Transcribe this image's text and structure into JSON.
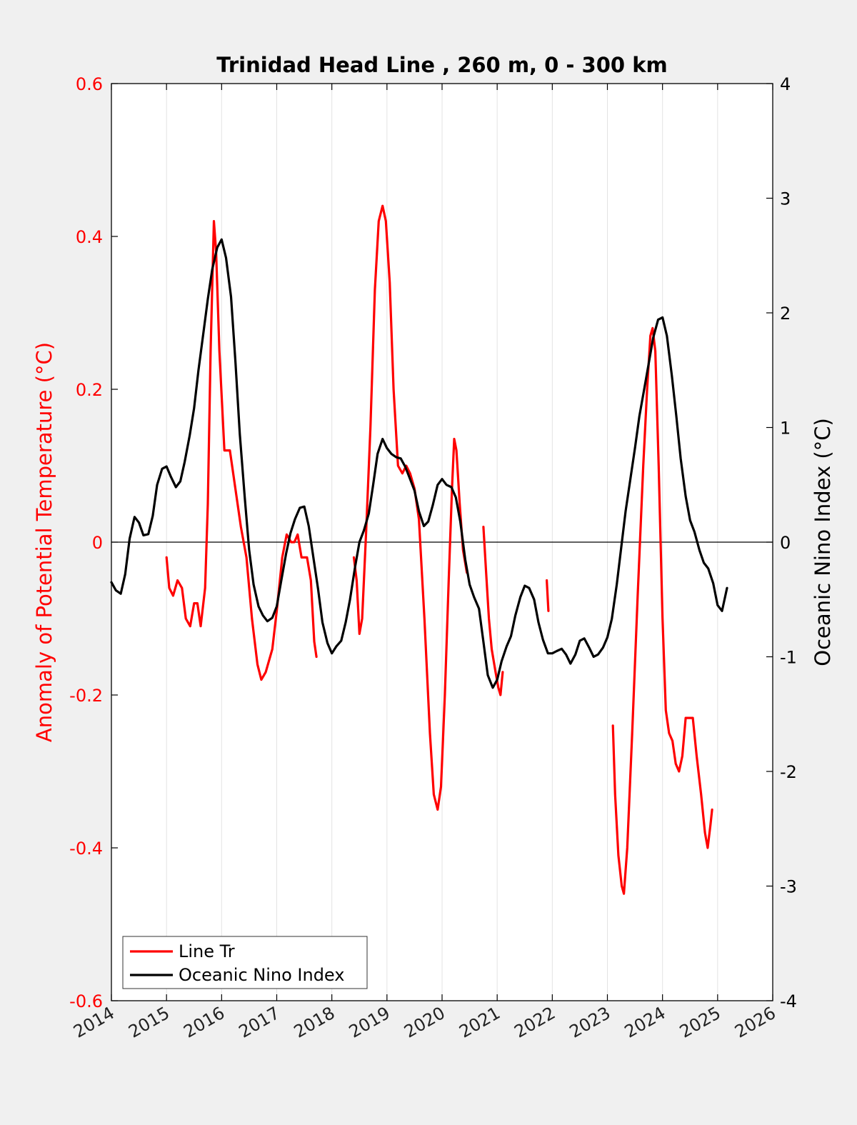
{
  "chart_data": {
    "type": "line",
    "title": "Trinidad Head Line , 260 m, 0 - 300 km",
    "xlim": [
      2014,
      2026
    ],
    "x_ticks": [
      2014,
      2015,
      2016,
      2017,
      2018,
      2019,
      2020,
      2021,
      2022,
      2023,
      2024,
      2025,
      2026
    ],
    "x_tick_labels": [
      "2014",
      "2015",
      "2016",
      "2017",
      "2018",
      "2019",
      "2020",
      "2021",
      "2022",
      "2023",
      "2024",
      "2025",
      "2026"
    ],
    "grid": "vertical",
    "legend_position": "bottom-left",
    "y_left": {
      "label": "Anomaly of Potential Temperature (°C)",
      "lim": [
        -0.6,
        0.6
      ],
      "ticks": [
        -0.6,
        -0.4,
        -0.2,
        0,
        0.2,
        0.4,
        0.6
      ],
      "tick_labels": [
        "-0.6",
        "-0.4",
        "-0.2",
        "0",
        "0.2",
        "0.4",
        "0.6"
      ],
      "color": "#ff0000"
    },
    "y_right": {
      "label": "Oceanic Nino Index (°C)",
      "lim": [
        -4,
        4
      ],
      "ticks": [
        -4,
        -3,
        -2,
        -1,
        0,
        1,
        2,
        3,
        4
      ],
      "tick_labels": [
        "-4",
        "-3",
        "-2",
        "-1",
        "0",
        "1",
        "2",
        "3",
        "4"
      ],
      "color": "#000000"
    },
    "series": [
      {
        "name": "Line Tr",
        "axis": "left",
        "color": "#ff0000",
        "segments": [
          [
            [
              2015.0,
              -0.02
            ],
            [
              2015.05,
              -0.06
            ],
            [
              2015.12,
              -0.07
            ],
            [
              2015.2,
              -0.05
            ],
            [
              2015.28,
              -0.06
            ],
            [
              2015.35,
              -0.1
            ],
            [
              2015.43,
              -0.11
            ],
            [
              2015.5,
              -0.08
            ],
            [
              2015.56,
              -0.08
            ],
            [
              2015.62,
              -0.11
            ],
            [
              2015.7,
              -0.06
            ],
            [
              2015.75,
              0.05
            ],
            [
              2015.8,
              0.25
            ],
            [
              2015.86,
              0.42
            ],
            [
              2015.9,
              0.38
            ],
            [
              2015.96,
              0.25
            ],
            [
              2016.05,
              0.12
            ],
            [
              2016.15,
              0.12
            ],
            [
              2016.25,
              0.07
            ],
            [
              2016.35,
              0.02
            ],
            [
              2016.45,
              -0.02
            ],
            [
              2016.55,
              -0.1
            ],
            [
              2016.65,
              -0.16
            ],
            [
              2016.72,
              -0.18
            ],
            [
              2016.8,
              -0.17
            ],
            [
              2016.92,
              -0.14
            ],
            [
              2017.0,
              -0.09
            ],
            [
              2017.1,
              -0.02
            ],
            [
              2017.18,
              0.01
            ],
            [
              2017.26,
              0.0
            ],
            [
              2017.32,
              0.0
            ],
            [
              2017.38,
              0.01
            ],
            [
              2017.45,
              -0.02
            ],
            [
              2017.55,
              -0.02
            ],
            [
              2017.62,
              -0.05
            ],
            [
              2017.68,
              -0.13
            ],
            [
              2017.72,
              -0.15
            ]
          ],
          [
            [
              2018.4,
              -0.02
            ],
            [
              2018.45,
              -0.05
            ],
            [
              2018.5,
              -0.12
            ],
            [
              2018.55,
              -0.1
            ],
            [
              2018.62,
              0.01
            ],
            [
              2018.7,
              0.15
            ],
            [
              2018.78,
              0.33
            ],
            [
              2018.85,
              0.42
            ],
            [
              2018.92,
              0.44
            ],
            [
              2018.98,
              0.42
            ],
            [
              2019.05,
              0.34
            ],
            [
              2019.12,
              0.2
            ],
            [
              2019.2,
              0.1
            ],
            [
              2019.28,
              0.09
            ],
            [
              2019.35,
              0.1
            ],
            [
              2019.42,
              0.09
            ],
            [
              2019.5,
              0.07
            ],
            [
              2019.58,
              0.03
            ],
            [
              2019.68,
              -0.1
            ],
            [
              2019.78,
              -0.25
            ],
            [
              2019.85,
              -0.33
            ],
            [
              2019.92,
              -0.35
            ],
            [
              2019.98,
              -0.32
            ],
            [
              2020.05,
              -0.2
            ],
            [
              2020.12,
              -0.05
            ],
            [
              2020.18,
              0.07
            ],
            [
              2020.22,
              0.135
            ],
            [
              2020.26,
              0.12
            ],
            [
              2020.32,
              0.05
            ],
            [
              2020.38,
              -0.01
            ],
            [
              2020.45,
              -0.04
            ]
          ],
          [
            [
              2020.75,
              0.02
            ],
            [
              2020.8,
              -0.04
            ],
            [
              2020.85,
              -0.1
            ],
            [
              2020.9,
              -0.14
            ],
            [
              2020.97,
              -0.17
            ],
            [
              2021.02,
              -0.19
            ],
            [
              2021.06,
              -0.2
            ],
            [
              2021.1,
              -0.17
            ]
          ],
          [
            [
              2021.9,
              -0.05
            ],
            [
              2021.93,
              -0.09
            ]
          ],
          [
            [
              2023.1,
              -0.24
            ],
            [
              2023.14,
              -0.33
            ],
            [
              2023.2,
              -0.41
            ],
            [
              2023.26,
              -0.45
            ],
            [
              2023.3,
              -0.46
            ],
            [
              2023.36,
              -0.4
            ],
            [
              2023.45,
              -0.25
            ],
            [
              2023.55,
              -0.07
            ],
            [
              2023.65,
              0.1
            ],
            [
              2023.72,
              0.2
            ],
            [
              2023.78,
              0.27
            ],
            [
              2023.82,
              0.28
            ],
            [
              2023.87,
              0.25
            ],
            [
              2023.93,
              0.1
            ],
            [
              2024.0,
              -0.1
            ],
            [
              2024.06,
              -0.22
            ],
            [
              2024.12,
              -0.25
            ],
            [
              2024.18,
              -0.26
            ],
            [
              2024.24,
              -0.29
            ],
            [
              2024.3,
              -0.3
            ],
            [
              2024.36,
              -0.28
            ],
            [
              2024.42,
              -0.23
            ],
            [
              2024.48,
              -0.23
            ],
            [
              2024.55,
              -0.23
            ],
            [
              2024.62,
              -0.28
            ],
            [
              2024.7,
              -0.33
            ],
            [
              2024.77,
              -0.38
            ],
            [
              2024.82,
              -0.4
            ],
            [
              2024.87,
              -0.37
            ],
            [
              2024.9,
              -0.35
            ]
          ]
        ]
      },
      {
        "name": "Oceanic Nino Index",
        "axis": "right",
        "color": "#000000",
        "segments": [
          [
            [
              2014.0,
              -0.35
            ],
            [
              2014.08,
              -0.42
            ],
            [
              2014.17,
              -0.45
            ],
            [
              2014.25,
              -0.28
            ],
            [
              2014.33,
              0.03
            ],
            [
              2014.42,
              0.22
            ],
            [
              2014.5,
              0.17
            ],
            [
              2014.58,
              0.06
            ],
            [
              2014.67,
              0.07
            ],
            [
              2014.75,
              0.23
            ],
            [
              2014.83,
              0.5
            ],
            [
              2014.92,
              0.64
            ],
            [
              2015.0,
              0.66
            ],
            [
              2015.08,
              0.57
            ],
            [
              2015.17,
              0.48
            ],
            [
              2015.25,
              0.53
            ],
            [
              2015.33,
              0.7
            ],
            [
              2015.42,
              0.93
            ],
            [
              2015.5,
              1.17
            ],
            [
              2015.58,
              1.5
            ],
            [
              2015.67,
              1.83
            ],
            [
              2015.75,
              2.12
            ],
            [
              2015.83,
              2.38
            ],
            [
              2015.92,
              2.57
            ],
            [
              2016.0,
              2.64
            ],
            [
              2016.08,
              2.48
            ],
            [
              2016.17,
              2.14
            ],
            [
              2016.25,
              1.58
            ],
            [
              2016.33,
              0.94
            ],
            [
              2016.42,
              0.39
            ],
            [
              2016.5,
              -0.07
            ],
            [
              2016.58,
              -0.37
            ],
            [
              2016.67,
              -0.56
            ],
            [
              2016.75,
              -0.64
            ],
            [
              2016.83,
              -0.69
            ],
            [
              2016.92,
              -0.66
            ],
            [
              2017.0,
              -0.56
            ],
            [
              2017.08,
              -0.34
            ],
            [
              2017.17,
              -0.1
            ],
            [
              2017.25,
              0.08
            ],
            [
              2017.33,
              0.2
            ],
            [
              2017.42,
              0.3
            ],
            [
              2017.5,
              0.31
            ],
            [
              2017.58,
              0.14
            ],
            [
              2017.67,
              -0.15
            ],
            [
              2017.75,
              -0.41
            ],
            [
              2017.83,
              -0.7
            ],
            [
              2017.92,
              -0.88
            ],
            [
              2018.0,
              -0.97
            ],
            [
              2018.08,
              -0.91
            ],
            [
              2018.17,
              -0.86
            ],
            [
              2018.25,
              -0.7
            ],
            [
              2018.33,
              -0.5
            ],
            [
              2018.42,
              -0.22
            ],
            [
              2018.5,
              0.0
            ],
            [
              2018.58,
              0.1
            ],
            [
              2018.67,
              0.25
            ],
            [
              2018.75,
              0.5
            ],
            [
              2018.83,
              0.77
            ],
            [
              2018.92,
              0.9
            ],
            [
              2019.0,
              0.82
            ],
            [
              2019.08,
              0.77
            ],
            [
              2019.17,
              0.74
            ],
            [
              2019.25,
              0.73
            ],
            [
              2019.33,
              0.66
            ],
            [
              2019.42,
              0.55
            ],
            [
              2019.5,
              0.45
            ],
            [
              2019.58,
              0.27
            ],
            [
              2019.67,
              0.14
            ],
            [
              2019.75,
              0.18
            ],
            [
              2019.83,
              0.32
            ],
            [
              2019.92,
              0.5
            ],
            [
              2020.0,
              0.55
            ],
            [
              2020.08,
              0.5
            ],
            [
              2020.17,
              0.48
            ],
            [
              2020.25,
              0.39
            ],
            [
              2020.33,
              0.18
            ],
            [
              2020.42,
              -0.15
            ],
            [
              2020.5,
              -0.37
            ],
            [
              2020.58,
              -0.48
            ],
            [
              2020.67,
              -0.58
            ],
            [
              2020.75,
              -0.87
            ],
            [
              2020.83,
              -1.16
            ],
            [
              2020.92,
              -1.27
            ],
            [
              2021.0,
              -1.2
            ],
            [
              2021.08,
              -1.04
            ],
            [
              2021.17,
              -0.91
            ],
            [
              2021.25,
              -0.82
            ],
            [
              2021.33,
              -0.64
            ],
            [
              2021.42,
              -0.48
            ],
            [
              2021.5,
              -0.38
            ],
            [
              2021.58,
              -0.4
            ],
            [
              2021.67,
              -0.5
            ],
            [
              2021.75,
              -0.7
            ],
            [
              2021.83,
              -0.85
            ],
            [
              2021.92,
              -0.97
            ],
            [
              2022.0,
              -0.97
            ],
            [
              2022.08,
              -0.95
            ],
            [
              2022.17,
              -0.93
            ],
            [
              2022.25,
              -0.98
            ],
            [
              2022.33,
              -1.06
            ],
            [
              2022.42,
              -0.98
            ],
            [
              2022.5,
              -0.86
            ],
            [
              2022.58,
              -0.84
            ],
            [
              2022.67,
              -0.92
            ],
            [
              2022.75,
              -1.0
            ],
            [
              2022.83,
              -0.98
            ],
            [
              2022.92,
              -0.92
            ],
            [
              2023.0,
              -0.83
            ],
            [
              2023.08,
              -0.67
            ],
            [
              2023.17,
              -0.37
            ],
            [
              2023.25,
              -0.05
            ],
            [
              2023.33,
              0.27
            ],
            [
              2023.42,
              0.56
            ],
            [
              2023.5,
              0.82
            ],
            [
              2023.58,
              1.1
            ],
            [
              2023.67,
              1.34
            ],
            [
              2023.75,
              1.56
            ],
            [
              2023.83,
              1.78
            ],
            [
              2023.92,
              1.94
            ],
            [
              2024.0,
              1.96
            ],
            [
              2024.08,
              1.8
            ],
            [
              2024.17,
              1.45
            ],
            [
              2024.25,
              1.1
            ],
            [
              2024.33,
              0.73
            ],
            [
              2024.42,
              0.4
            ],
            [
              2024.5,
              0.19
            ],
            [
              2024.58,
              0.09
            ],
            [
              2024.67,
              -0.07
            ],
            [
              2024.75,
              -0.18
            ],
            [
              2024.83,
              -0.23
            ],
            [
              2024.92,
              -0.36
            ],
            [
              2025.0,
              -0.55
            ],
            [
              2025.08,
              -0.6
            ],
            [
              2025.17,
              -0.4
            ]
          ]
        ]
      }
    ]
  }
}
